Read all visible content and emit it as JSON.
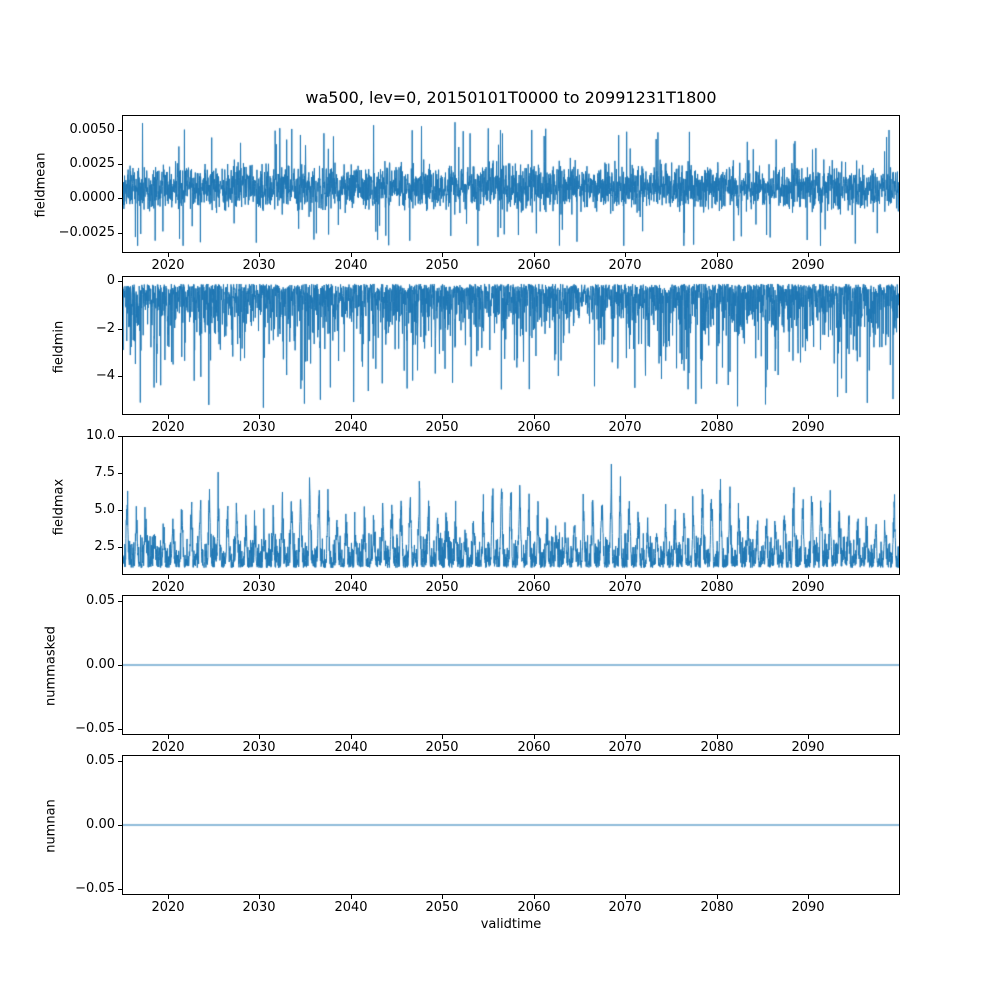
{
  "figure": {
    "title": "wa500, lev=0, 20150101T0000 to 20991231T1800",
    "xlabel": "validtime",
    "background": "#ffffff",
    "line_color": "#1f77b4",
    "xlim": [
      2015,
      2100
    ],
    "x_data_range": [
      2015.0,
      2100.0
    ],
    "xticks": {
      "values": [
        2020,
        2030,
        2040,
        2050,
        2060,
        2070,
        2080,
        2090
      ],
      "labels": [
        "2020",
        "2030",
        "2040",
        "2050",
        "2060",
        "2070",
        "2080",
        "2090"
      ]
    }
  },
  "chart_data": [
    {
      "type": "line",
      "ylabel": "fieldmean",
      "xlabel": "",
      "ylim": [
        -0.00396,
        0.00606
      ],
      "yticks": {
        "values": [
          0.005,
          0.0025,
          0.0,
          -0.0025
        ],
        "labels": [
          "0.0050",
          "0.0025",
          "0.0000",
          "−0.0025"
        ]
      },
      "series": {
        "name": "fieldmean",
        "kind": "noisy-mean",
        "n": 3500,
        "seed": 101,
        "mu": 0.0008,
        "amp": 0.0024,
        "spike_prob": 0.025,
        "clip_min": -0.0035,
        "clip_max": 0.0056,
        "summary": "dense noise band approx -0.002 to 0.0035, extremes -0.0035 to 0.0056"
      }
    },
    {
      "type": "line",
      "ylabel": "fieldmin",
      "xlabel": "",
      "ylim": [
        -5.615,
        0.215
      ],
      "yticks": {
        "values": [
          0,
          -2,
          -4
        ],
        "labels": [
          "0",
          "−2",
          "−4"
        ]
      },
      "series": {
        "name": "fieldmin",
        "kind": "exp-min",
        "n": 3500,
        "seed": 202,
        "offset": 0.08,
        "scale": 0.85,
        "cap": 5.27,
        "summary": "dense band approx -0.1 to -3 with downward spikes to about -5.4"
      }
    },
    {
      "type": "line",
      "ylabel": "fieldmax",
      "xlabel": "",
      "ylim": [
        0.62,
        10.03
      ],
      "yticks": {
        "values": [
          10.0,
          7.5,
          5.0,
          2.5
        ],
        "labels": [
          "10.0",
          "7.5",
          "5.0",
          "2.5"
        ]
      },
      "series": {
        "name": "fieldmax",
        "kind": "seasonal-max",
        "n": 3500,
        "seed": 303,
        "base": 1.05,
        "base_amp": 2.6,
        "env_mean": 3.1,
        "env_amp": 1.5,
        "env_period": 11,
        "env_noise": 1.1,
        "summary": "dense band approx 1 to 4 with annual peaks reaching 6.5 to 9.6"
      }
    },
    {
      "type": "line",
      "ylabel": "nummasked",
      "xlabel": "",
      "ylim": [
        -0.055,
        0.055
      ],
      "yticks": {
        "values": [
          0.05,
          0.0,
          -0.05
        ],
        "labels": [
          "0.05",
          "0.00",
          "−0.05"
        ]
      },
      "series": {
        "name": "nummasked",
        "kind": "constant",
        "n": 2,
        "value": 0.0,
        "summary": "flat line at 0.00 over full time range"
      }
    },
    {
      "type": "line",
      "ylabel": "numnan",
      "xlabel": "validtime",
      "ylim": [
        -0.055,
        0.055
      ],
      "yticks": {
        "values": [
          0.05,
          0.0,
          -0.05
        ],
        "labels": [
          "0.05",
          "0.00",
          "−0.05"
        ]
      },
      "series": {
        "name": "numnan",
        "kind": "constant",
        "n": 2,
        "value": 0.0,
        "summary": "flat line at 0.00 over full time range"
      }
    }
  ]
}
